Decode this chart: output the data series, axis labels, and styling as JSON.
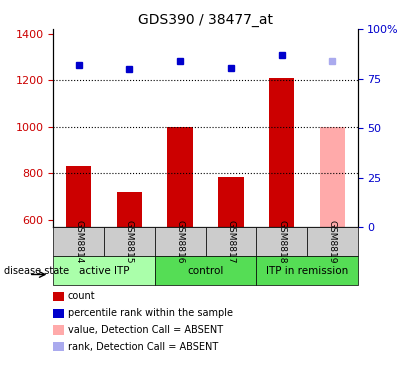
{
  "title": "GDS390 / 38477_at",
  "samples": [
    "GSM8814",
    "GSM8815",
    "GSM8816",
    "GSM8817",
    "GSM8818",
    "GSM8819"
  ],
  "bar_values": [
    830,
    720,
    1000,
    785,
    1210,
    1000
  ],
  "bar_colors": [
    "#cc0000",
    "#cc0000",
    "#cc0000",
    "#cc0000",
    "#cc0000",
    "#ffaaaa"
  ],
  "rank_values": [
    1265,
    1250,
    1285,
    1255,
    1310,
    1285
  ],
  "rank_colors": [
    "#0000cc",
    "#0000cc",
    "#0000cc",
    "#0000cc",
    "#0000cc",
    "#aaaaee"
  ],
  "ylim_left": [
    570,
    1420
  ],
  "ylim_right": [
    0,
    100
  ],
  "right_ticks": [
    0,
    25,
    50,
    75,
    100
  ],
  "right_tick_labels": [
    "0",
    "25",
    "50",
    "75",
    "100%"
  ],
  "left_ticks": [
    600,
    800,
    1000,
    1200,
    1400
  ],
  "dotted_lines": [
    800,
    1000,
    1200
  ],
  "groups": [
    {
      "label": "active ITP",
      "samples": [
        0,
        1
      ],
      "color": "#aaffaa"
    },
    {
      "label": "control",
      "samples": [
        2,
        3
      ],
      "color": "#55ee55"
    },
    {
      "label": "ITP in remission",
      "samples": [
        4,
        5
      ],
      "color": "#55ee55"
    }
  ],
  "group_bg_colors": [
    "#ccffcc",
    "#55dd55",
    "#55dd55"
  ],
  "disease_state_label": "disease state",
  "legend_items": [
    {
      "label": "count",
      "color": "#cc0000",
      "type": "rect"
    },
    {
      "label": "percentile rank within the sample",
      "color": "#0000cc",
      "type": "rect"
    },
    {
      "label": "value, Detection Call = ABSENT",
      "color": "#ffaaaa",
      "type": "rect"
    },
    {
      "label": "rank, Detection Call = ABSENT",
      "color": "#aaaaee",
      "type": "rect"
    }
  ],
  "xlabel_rotation": -90,
  "bar_width": 0.5,
  "tick_label_color_left": "#cc0000",
  "tick_label_color_right": "#0000cc",
  "grid_color": "black",
  "grid_linestyle": "dotted"
}
